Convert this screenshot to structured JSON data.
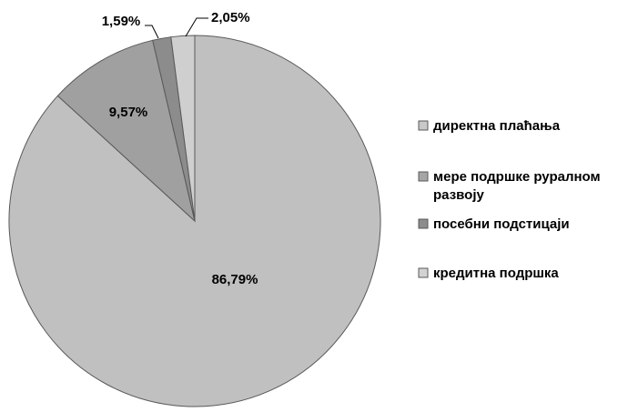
{
  "chart_data": {
    "type": "pie",
    "title": "",
    "categories": [
      "директна плаћања",
      "мере подршке руралном развоју",
      "посебни подстицаји",
      "кредитна подршка"
    ],
    "legend_lines": [
      [
        "директна плаћања"
      ],
      [
        "мере подршке руралном",
        "развоју"
      ],
      [
        "посебни подстицаји"
      ],
      [
        "кредитна подршка"
      ]
    ],
    "values": [
      86.79,
      9.57,
      1.59,
      2.05
    ],
    "data_labels": [
      "86,79%",
      "9,57%",
      "1,59%",
      "2,05%"
    ],
    "colors": [
      "#c0c0c0",
      "#a0a0a0",
      "#8c8c8c",
      "#cfcfcf"
    ],
    "legend_position": "right"
  }
}
